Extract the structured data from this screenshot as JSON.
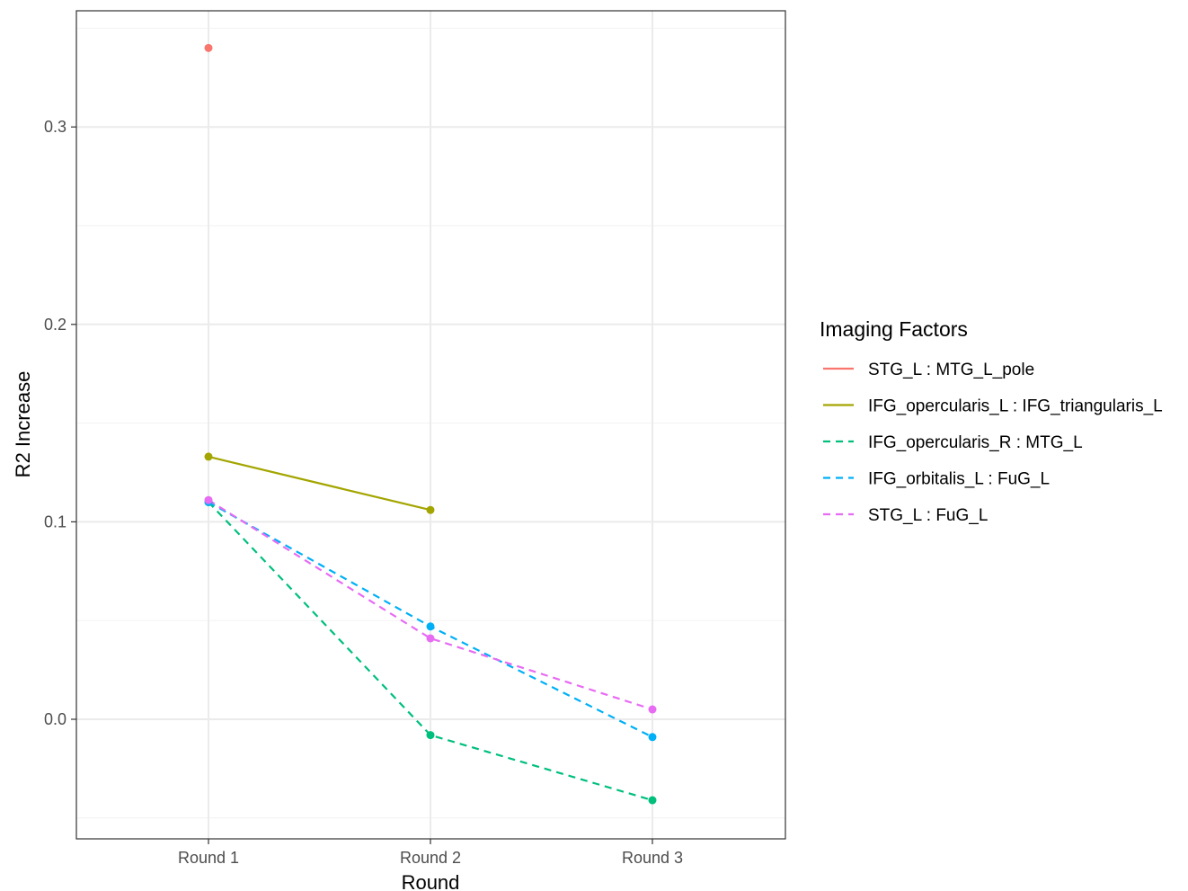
{
  "chart_data": {
    "type": "line",
    "categories": [
      "Round 1",
      "Round 2",
      "Round 3"
    ],
    "xlabel": "Round",
    "ylabel": "R2 Increase",
    "ylim": [
      -0.06,
      0.35
    ],
    "yticks": [
      0.0,
      0.1,
      0.2,
      0.3
    ],
    "ytick_labels": [
      "0.0",
      "0.1",
      "0.2",
      "0.3"
    ],
    "grid": true,
    "legend": {
      "title": "Imaging Factors",
      "placement": "right"
    },
    "series": [
      {
        "name": "STG_L : MTG_L_pole",
        "color": "#F8766D",
        "dash": "solid",
        "values": [
          0.34,
          null,
          null
        ]
      },
      {
        "name": "IFG_opercularis_L : IFG_triangularis_L",
        "color": "#A3A500",
        "dash": "solid",
        "values": [
          0.133,
          0.106,
          null
        ]
      },
      {
        "name": "IFG_opercularis_R : MTG_L",
        "color": "#00BF7D",
        "dash": "dashed",
        "values": [
          0.11,
          -0.008,
          -0.041
        ]
      },
      {
        "name": "IFG_orbitalis_L : FuG_L",
        "color": "#00B0F6",
        "dash": "dashed",
        "values": [
          0.11,
          0.047,
          -0.009
        ]
      },
      {
        "name": "STG_L : FuG_L",
        "color": "#E76BF3",
        "dash": "dashed",
        "values": [
          0.111,
          0.041,
          0.005
        ]
      }
    ]
  }
}
